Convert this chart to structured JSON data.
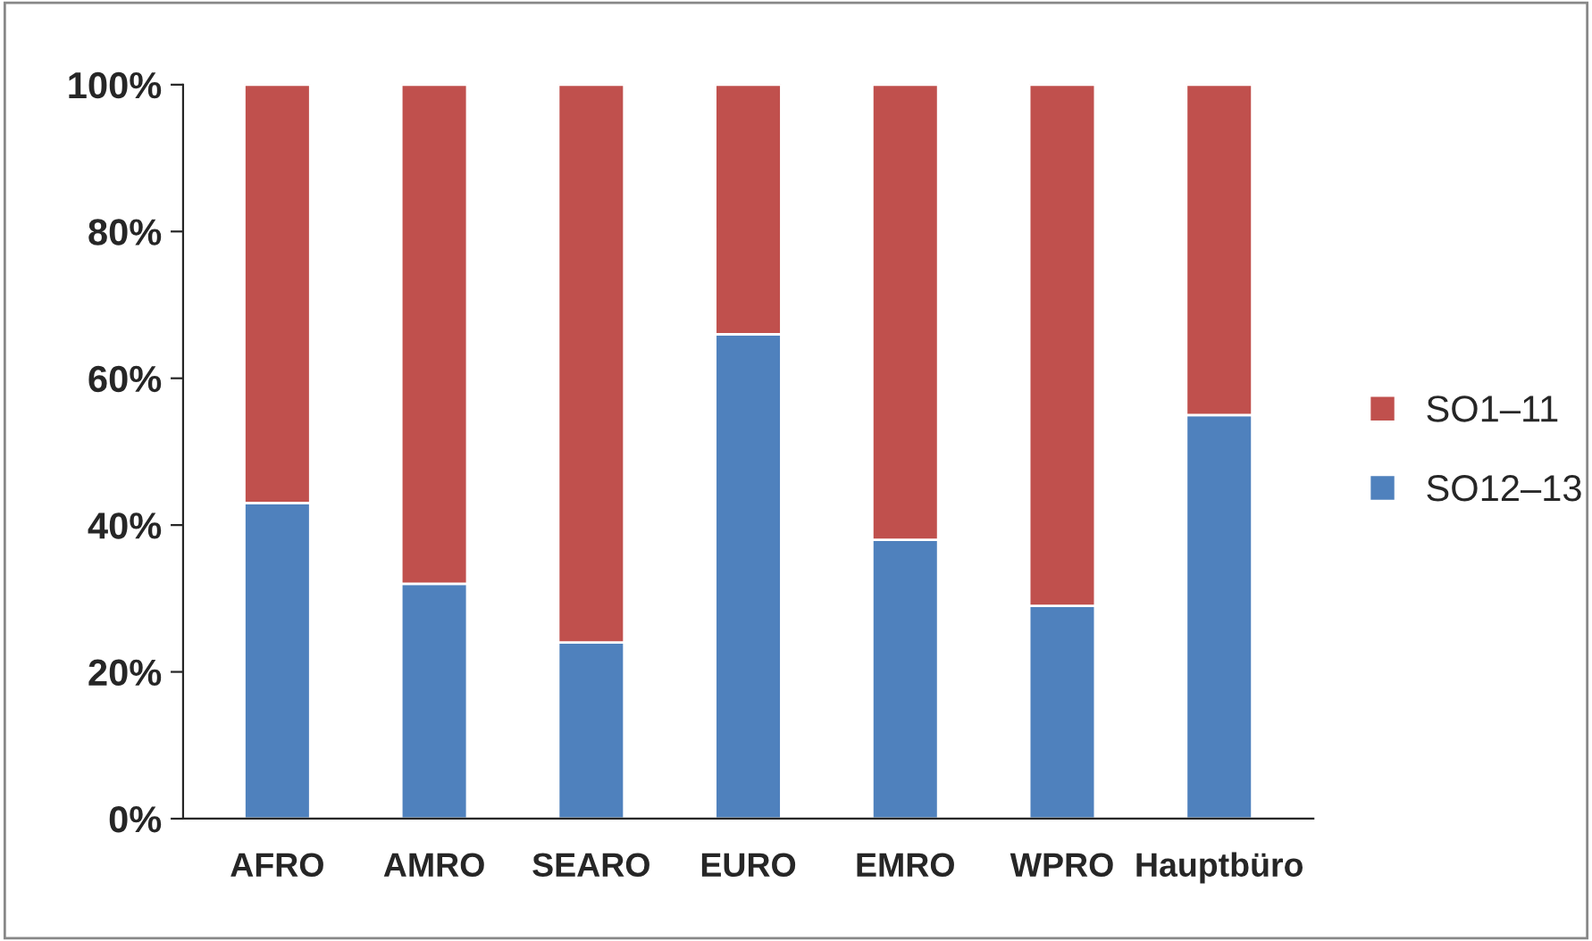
{
  "chart_data": {
    "type": "bar",
    "stacked": true,
    "categories": [
      "AFRO",
      "AMRO",
      "SEARO",
      "EURO",
      "EMRO",
      "WPRO",
      "Hauptbüro"
    ],
    "series": [
      {
        "name": "SO12–13",
        "color": "#4f81bd",
        "values": [
          43,
          32,
          24,
          66,
          38,
          29,
          55
        ]
      },
      {
        "name": "SO1–11",
        "color": "#c0504d",
        "values": [
          57,
          68,
          76,
          34,
          62,
          71,
          45
        ]
      }
    ],
    "ylim": [
      0,
      100
    ],
    "yticks": [
      {
        "value": 0,
        "label": "0%"
      },
      {
        "value": 20,
        "label": "20%"
      },
      {
        "value": 40,
        "label": "40%"
      },
      {
        "value": 60,
        "label": "60%"
      },
      {
        "value": 80,
        "label": "80%"
      },
      {
        "value": 100,
        "label": "100%"
      }
    ],
    "grid": false,
    "legend": "right"
  }
}
